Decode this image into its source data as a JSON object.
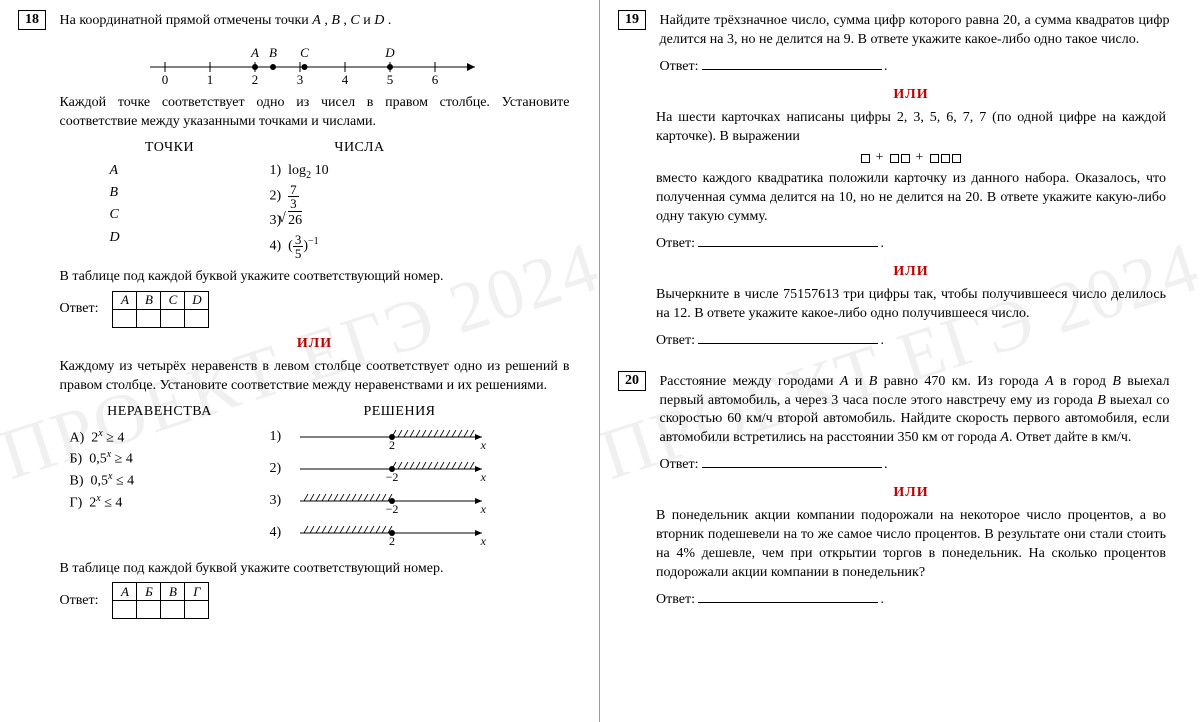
{
  "watermark": "ПРОЕКТ ЕГЭ 2024",
  "ili_label": "ИЛИ",
  "answer_label": "Ответ:",
  "answer_dot": ".",
  "left": {
    "task18": {
      "num": "18",
      "intro": "На координатной прямой отмечены точки A , B , C и D .",
      "numberline": {
        "ticks": [
          0,
          1,
          2,
          3,
          4,
          5,
          6
        ],
        "points": [
          {
            "label": "A",
            "x": 2.0
          },
          {
            "label": "B",
            "x": 2.4
          },
          {
            "label": "C",
            "x": 3.1
          },
          {
            "label": "D",
            "x": 5.0
          }
        ]
      },
      "para2": "Каждой точке соответствует одно из чисел в правом столбце. Установите соответствие между указанными точками и числами.",
      "points_title": "ТОЧКИ",
      "numbers_title": "ЧИСЛА",
      "letters": [
        "A",
        "B",
        "C",
        "D"
      ],
      "numbers_html": [
        "1)  log₂ 10",
        "2)  7⁄3",
        "3)  √26",
        "4)  (3⁄5)⁻¹"
      ],
      "table_hint": "В таблице под каждой буквой укажите соответствующий номер.",
      "letters_header": [
        "A",
        "B",
        "C",
        "D"
      ],
      "alt_intro": "Каждому из четырёх неравенств в левом столбце соответствует одно из решений в правом столбце. Установите соответствие между неравенствами и их решениями.",
      "ineq_title": "НЕРАВЕНСТВА",
      "sol_title": "РЕШЕНИЯ",
      "inequalities": [
        "А)  2ˣ ≥ 4",
        "Б)  0,5ˣ ≥ 4",
        "В)  0,5ˣ ≤ 4",
        "Г)  2ˣ ≤ 4"
      ],
      "solutions": [
        {
          "n": "1)",
          "from": 2,
          "dir": "right",
          "hatch": true,
          "label": "2"
        },
        {
          "n": "2)",
          "from": -2,
          "dir": "right",
          "hatch": false,
          "label": "−2"
        },
        {
          "n": "3)",
          "from": -2,
          "dir": "left",
          "hatch": true,
          "label": "−2"
        },
        {
          "n": "4)",
          "from": 2,
          "dir": "left",
          "hatch": false,
          "label": "2"
        }
      ],
      "table2_hint": "В таблице под каждой буквой укажите соответствующий номер.",
      "letters2_header": [
        "А",
        "Б",
        "В",
        "Г"
      ]
    }
  },
  "right": {
    "task19": {
      "num": "19",
      "text": "Найдите трёхзначное число, сумма цифр которого равна 20, а сумма квадратов цифр делится на 3, но не делится на 9. В ответе укажите какое-либо одно такое число.",
      "alt1_p1": "На шести карточках написаны цифры 2, 3, 5, 6, 7, 7 (по одной цифре на каждой карточке). В выражении",
      "alt1_p2": "вместо каждого квадратика положили карточку из данного набора. Оказалось, что полученная сумма делится на 10, но не делится на 20. В ответе укажите какую-либо одну такую сумму.",
      "alt2": "Вычеркните в числе 75157613 три цифры так, чтобы получившееся число делилось на 12. В ответе укажите какое-либо одно получившееся число."
    },
    "task20": {
      "num": "20",
      "text": "Расстояние между городами A и B равно 470 км. Из города A в город B выехал первый автомобиль, а через 3 часа после этого навстречу ему из города B выехал со скоростью 60 км/ч второй автомобиль. Найдите скорость первого автомобиля, если автомобили встретились на расстоянии 350 км от города A. Ответ дайте в км/ч.",
      "alt": "В понедельник акции компании подорожали на некоторое число процентов, а во вторник подешевели на то же самое число процентов. В результате они стали стоить на 4% дешевле, чем при открытии торгов в понедельник. На сколько процентов подорожали акции компании в понедельник?"
    }
  },
  "colors": {
    "ili": "#c00000",
    "text": "#000000",
    "bg": "#ffffff"
  }
}
